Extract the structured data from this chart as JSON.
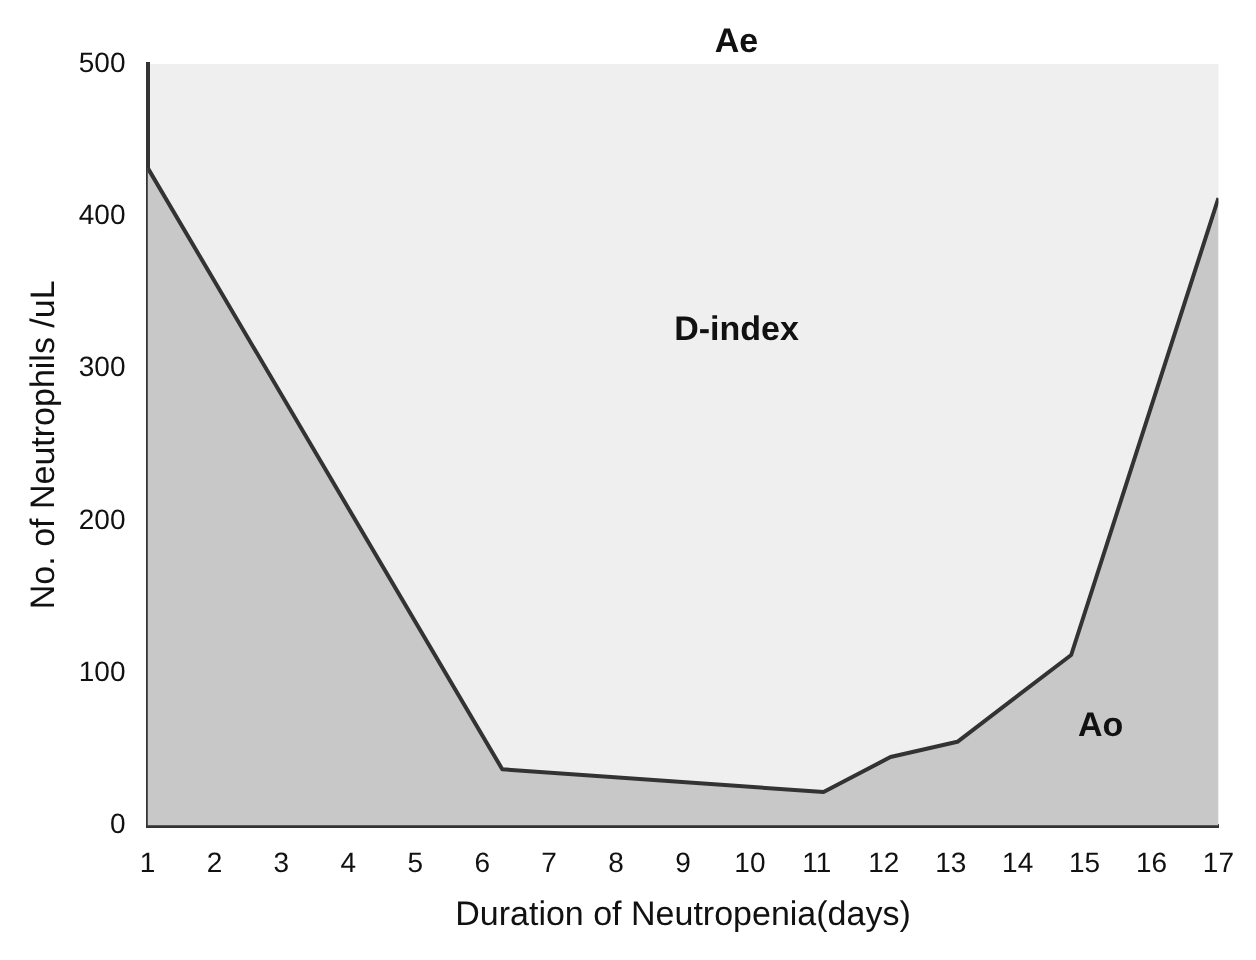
{
  "chart_data": {
    "type": "area",
    "xlabel": "Duration of Neutropenia(days)",
    "ylabel": "No. of Neutrophils /uL",
    "x": [
      1,
      6.3,
      11.1,
      12.1,
      13.1,
      14.8,
      17
    ],
    "series": [
      {
        "color": "#c8c8c8",
        "values": [
          432,
          37,
          22,
          45,
          55,
          112,
          412
        ]
      }
    ],
    "xlim": [
      1,
      17
    ],
    "xticks": [
      1,
      2,
      3,
      4,
      5,
      6,
      7,
      8,
      9,
      10,
      11,
      12,
      13,
      14,
      15,
      16,
      17
    ],
    "ylim": [
      0,
      500
    ],
    "yticks": [
      0,
      100,
      200,
      300,
      400,
      500
    ],
    "grid": false,
    "legend": false,
    "marker": "none",
    "line_style": "solid",
    "annotations": [
      "Ae",
      "D-index",
      "Ao"
    ]
  }
}
